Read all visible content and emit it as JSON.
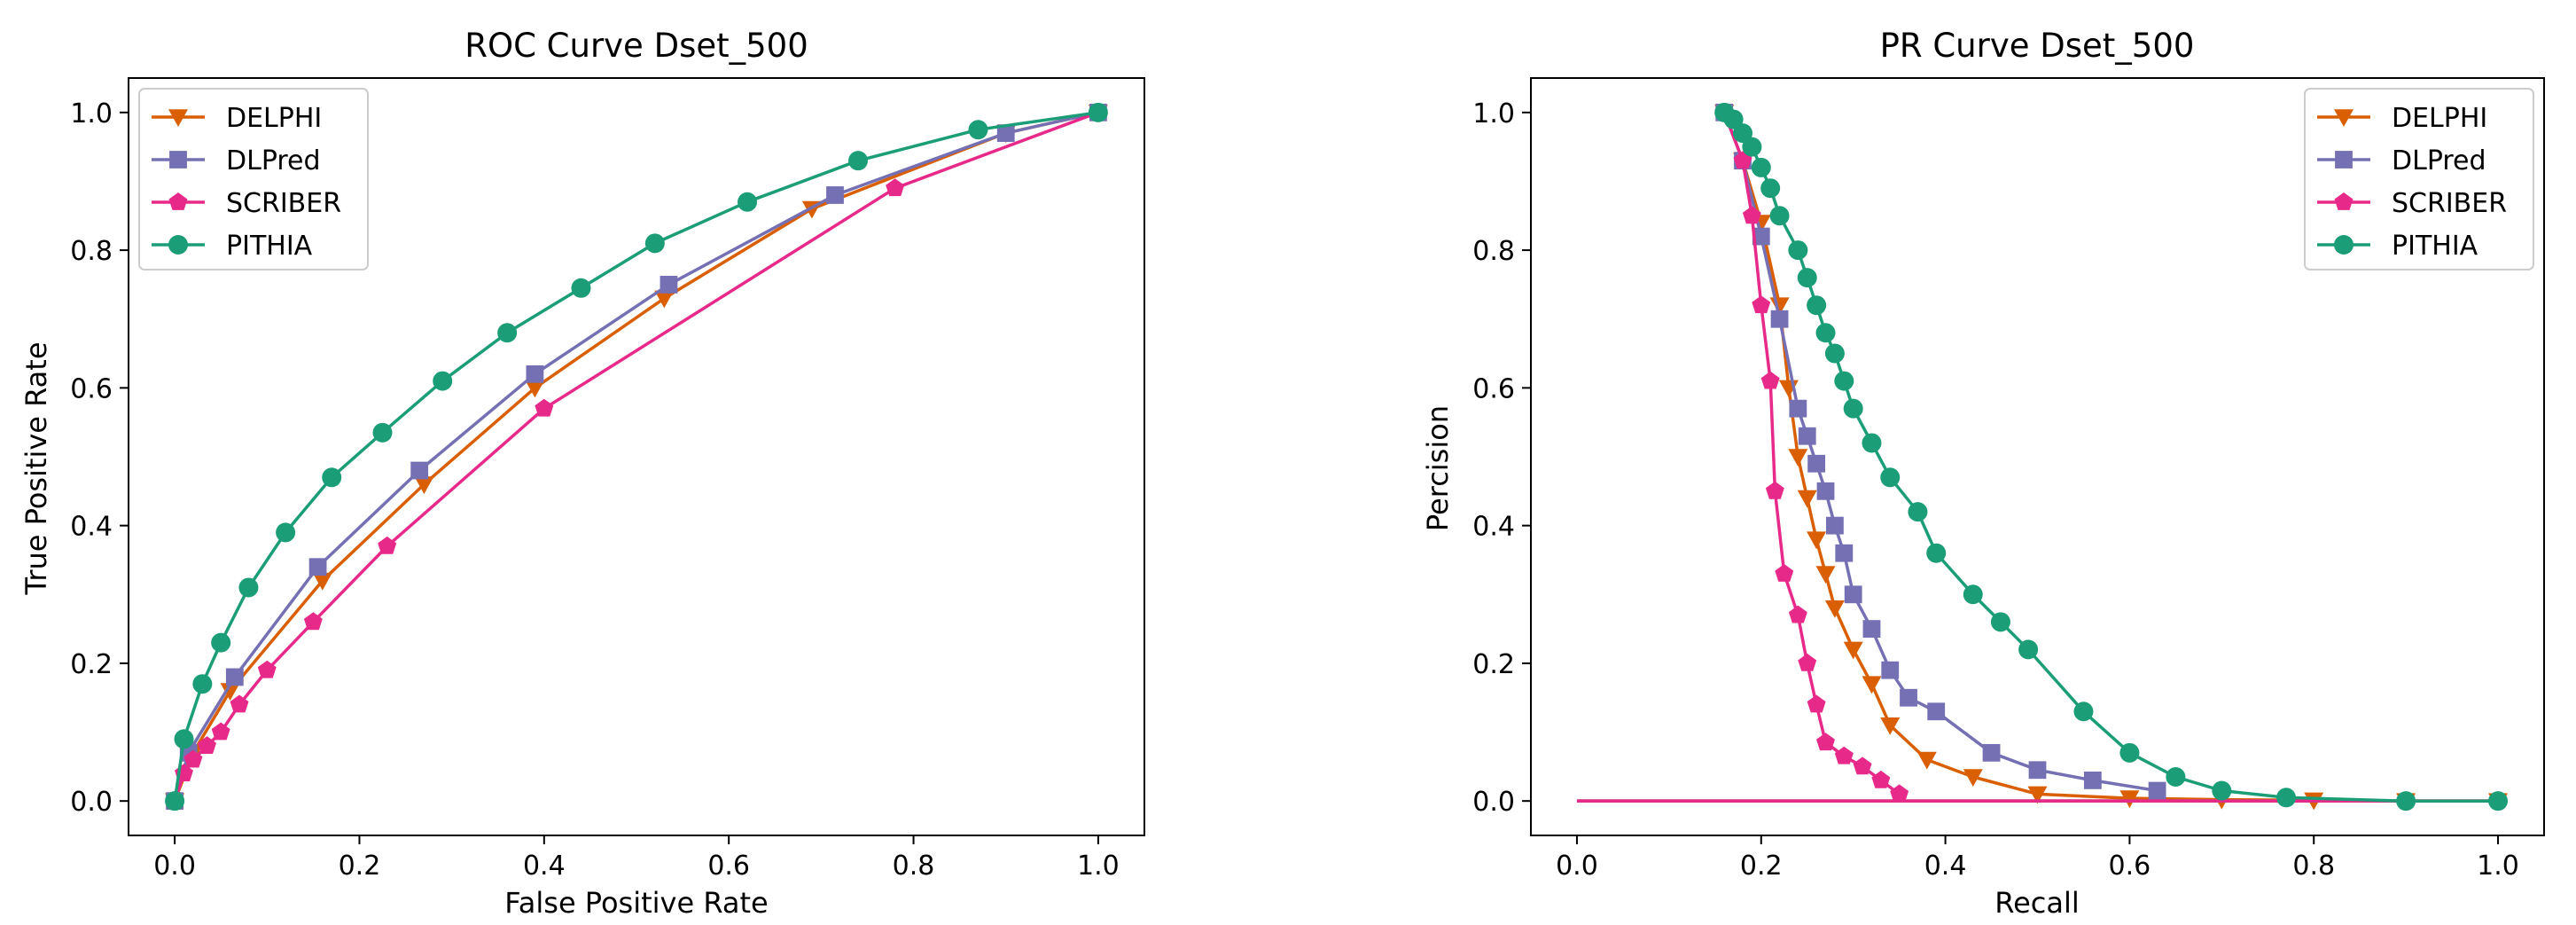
{
  "colors": {
    "DELPHI": "#d95f02",
    "DLPred": "#7570b3",
    "SCRIBER": "#e7298a",
    "PITHIA": "#1b9e77"
  },
  "chart_data": [
    {
      "type": "line",
      "title": "ROC Curve Dset_500",
      "xlabel": "False Positive Rate",
      "ylabel": "True Positive Rate",
      "xlim": [
        -0.05,
        1.05
      ],
      "ylim": [
        -0.05,
        1.05
      ],
      "xticks": [
        "0.0",
        "0.2",
        "0.4",
        "0.6",
        "0.8",
        "1.0"
      ],
      "yticks": [
        "0.0",
        "0.2",
        "0.4",
        "0.6",
        "0.8",
        "1.0"
      ],
      "grid": false,
      "legend_placement": "upper left",
      "series": [
        {
          "name": "DELPHI",
          "marker": "triangle-down",
          "x": [
            0.0,
            0.02,
            0.06,
            0.16,
            0.27,
            0.39,
            0.53,
            0.69,
            0.9,
            1.0
          ],
          "y": [
            0.0,
            0.07,
            0.16,
            0.32,
            0.46,
            0.6,
            0.73,
            0.86,
            0.97,
            1.0
          ]
        },
        {
          "name": "DLPred",
          "marker": "square",
          "x": [
            0.0,
            0.015,
            0.065,
            0.155,
            0.265,
            0.39,
            0.535,
            0.715,
            0.9,
            1.0
          ],
          "y": [
            0.0,
            0.07,
            0.18,
            0.34,
            0.48,
            0.62,
            0.75,
            0.88,
            0.97,
            1.0
          ]
        },
        {
          "name": "SCRIBER",
          "marker": "pentagon",
          "x": [
            0.0,
            0.01,
            0.02,
            0.035,
            0.05,
            0.07,
            0.1,
            0.15,
            0.23,
            0.4,
            0.78,
            1.0
          ],
          "y": [
            0.0,
            0.04,
            0.06,
            0.08,
            0.1,
            0.14,
            0.19,
            0.26,
            0.37,
            0.57,
            0.89,
            1.0
          ]
        },
        {
          "name": "PITHIA",
          "marker": "circle",
          "x": [
            0.0,
            0.01,
            0.03,
            0.05,
            0.08,
            0.12,
            0.17,
            0.225,
            0.29,
            0.36,
            0.44,
            0.52,
            0.62,
            0.74,
            0.87,
            1.0
          ],
          "y": [
            0.0,
            0.09,
            0.17,
            0.23,
            0.31,
            0.39,
            0.47,
            0.535,
            0.61,
            0.68,
            0.745,
            0.81,
            0.87,
            0.93,
            0.975,
            1.0
          ]
        }
      ]
    },
    {
      "type": "line",
      "title": "PR Curve Dset_500",
      "xlabel": "Recall",
      "ylabel": "Percision",
      "xlim": [
        -0.05,
        1.05
      ],
      "ylim": [
        -0.05,
        1.05
      ],
      "xticks": [
        "0.0",
        "0.2",
        "0.4",
        "0.6",
        "0.8",
        "1.0"
      ],
      "yticks": [
        "0.0",
        "0.2",
        "0.4",
        "0.6",
        "0.8",
        "1.0"
      ],
      "grid": false,
      "legend_placement": "upper right",
      "series": [
        {
          "name": "DELPHI",
          "marker": "triangle-down",
          "x": [
            0.16,
            0.18,
            0.2,
            0.22,
            0.23,
            0.24,
            0.25,
            0.26,
            0.27,
            0.28,
            0.3,
            0.32,
            0.34,
            0.38,
            0.43,
            0.5,
            0.6,
            0.7,
            0.8,
            0.9,
            1.0
          ],
          "y": [
            1.0,
            0.93,
            0.84,
            0.72,
            0.6,
            0.5,
            0.44,
            0.38,
            0.33,
            0.28,
            0.22,
            0.17,
            0.11,
            0.06,
            0.035,
            0.01,
            0.004,
            0.002,
            0.001,
            0.0,
            0.0
          ],
          "baseline_to": 1.0
        },
        {
          "name": "DLPred",
          "marker": "square",
          "x": [
            0.16,
            0.18,
            0.2,
            0.22,
            0.24,
            0.25,
            0.26,
            0.27,
            0.28,
            0.29,
            0.3,
            0.32,
            0.34,
            0.36,
            0.39,
            0.45,
            0.5,
            0.56,
            0.63
          ],
          "y": [
            1.0,
            0.93,
            0.82,
            0.7,
            0.57,
            0.53,
            0.49,
            0.45,
            0.4,
            0.36,
            0.3,
            0.25,
            0.19,
            0.15,
            0.13,
            0.07,
            0.045,
            0.03,
            0.015
          ],
          "baseline_to": 1.0
        },
        {
          "name": "SCRIBER",
          "marker": "pentagon",
          "x": [
            0.16,
            0.18,
            0.19,
            0.2,
            0.21,
            0.215,
            0.225,
            0.24,
            0.25,
            0.26,
            0.27,
            0.29,
            0.31,
            0.33,
            0.35
          ],
          "y": [
            1.0,
            0.93,
            0.85,
            0.72,
            0.61,
            0.45,
            0.33,
            0.27,
            0.2,
            0.14,
            0.085,
            0.065,
            0.05,
            0.03,
            0.01
          ],
          "baseline_to": 1.0
        },
        {
          "name": "PITHIA",
          "marker": "circle",
          "x": [
            0.16,
            0.17,
            0.18,
            0.19,
            0.2,
            0.21,
            0.22,
            0.24,
            0.25,
            0.26,
            0.27,
            0.28,
            0.29,
            0.3,
            0.32,
            0.34,
            0.37,
            0.39,
            0.43,
            0.46,
            0.49,
            0.55,
            0.6,
            0.65,
            0.7,
            0.77,
            0.9,
            1.0
          ],
          "y": [
            1.0,
            0.99,
            0.97,
            0.95,
            0.92,
            0.89,
            0.85,
            0.8,
            0.76,
            0.72,
            0.68,
            0.65,
            0.61,
            0.57,
            0.52,
            0.47,
            0.42,
            0.36,
            0.3,
            0.26,
            0.22,
            0.13,
            0.07,
            0.035,
            0.015,
            0.005,
            0.0,
            0.0
          ]
        }
      ]
    }
  ]
}
